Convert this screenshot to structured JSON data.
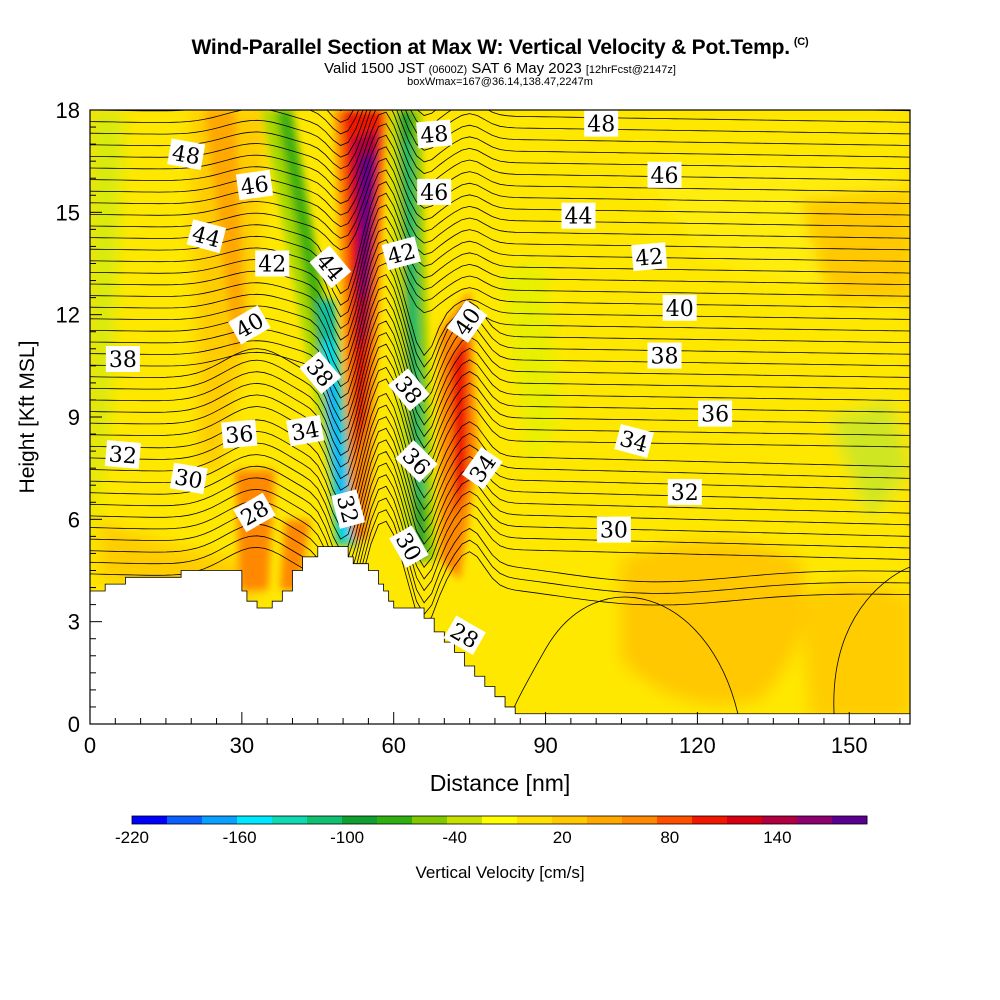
{
  "header": {
    "title": "Wind-Parallel Section at Max W: Vertical Velocity & Pot.Temp.",
    "title_mark": "(C)",
    "subtitle_a": "Valid 1500 JST",
    "subtitle_b": "(0600Z)",
    "subtitle_c": "SAT 6 May 2023",
    "subtitle_d": "[12hrFcst@2147z]",
    "subtitle_line3": "boxWmax=167@36.14,138.47,2247m"
  },
  "colorbar": {
    "title": "Vertical Velocity [cm/s]",
    "tick_labels": [
      "-220",
      "-160",
      "-100",
      "-40",
      "20",
      "80",
      "140"
    ],
    "colors": [
      "#0000ff",
      "#0a60ff",
      "#0aa0ff",
      "#00e8ff",
      "#10d8b0",
      "#10c070",
      "#10a030",
      "#30b010",
      "#80c800",
      "#c8e000",
      "#ffff00",
      "#ffe000",
      "#ffc800",
      "#ffa800",
      "#ff8800",
      "#ff5000",
      "#f01800",
      "#d80010",
      "#b00040",
      "#8c0070",
      "#5a0090"
    ]
  },
  "chart_data": {
    "type": "heatmap",
    "title": "Wind-Parallel Section at Max W: Vertical Velocity & Pot.Temp.",
    "xlabel": "Distance [nm]",
    "ylabel": "Height [Kft MSL]",
    "xlim": [
      0,
      162
    ],
    "ylim": [
      0,
      18
    ],
    "x_ticks": [
      "0",
      "30",
      "60",
      "90",
      "120",
      "150"
    ],
    "y_ticks": [
      "0",
      "3",
      "6",
      "9",
      "12",
      "15",
      "18"
    ],
    "field": "Vertical Velocity [cm/s]",
    "contour_field": "Potential Temperature",
    "w_features": [
      {
        "x": 55,
        "z": 14,
        "w": 167,
        "kind": "updraft core"
      },
      {
        "x": 50,
        "z": 8,
        "w": -180,
        "kind": "downdraft"
      },
      {
        "x": 64,
        "z": 9,
        "w": -70,
        "kind": "downdraft"
      },
      {
        "x": 76,
        "z": 10,
        "w": 80,
        "kind": "updraft"
      },
      {
        "x": 40,
        "z": 6,
        "w": 40,
        "kind": "updraft"
      },
      {
        "x": 30,
        "z": 12,
        "w": 30,
        "kind": "updraft"
      },
      {
        "x": 22,
        "z": 14,
        "w": -20,
        "kind": "downdraft"
      },
      {
        "x": 37,
        "z": 14,
        "w": -50,
        "kind": "downdraft"
      },
      {
        "x": 88,
        "z": 10,
        "w": -20,
        "kind": "downdraft"
      },
      {
        "x": 112,
        "z": 3,
        "w": 25,
        "kind": "updraft"
      },
      {
        "x": 150,
        "z": 8,
        "w": -25,
        "kind": "downdraft"
      }
    ],
    "contour_labels": [
      {
        "text": "48",
        "x": 19,
        "z": 16.7,
        "angle": 10
      },
      {
        "text": "48",
        "x": 68,
        "z": 17.3,
        "angle": -5
      },
      {
        "text": "48",
        "x": 101,
        "z": 17.6,
        "angle": 0
      },
      {
        "text": "46",
        "x": 32.5,
        "z": 15.8,
        "angle": -8
      },
      {
        "text": "46",
        "x": 68,
        "z": 15.6,
        "angle": 0
      },
      {
        "text": "46",
        "x": 113.5,
        "z": 16.1,
        "angle": 0
      },
      {
        "text": "44",
        "x": 23,
        "z": 14.3,
        "angle": 15
      },
      {
        "text": "44",
        "x": 47.5,
        "z": 13.4,
        "angle": 50
      },
      {
        "text": "44",
        "x": 96.5,
        "z": 14.9,
        "angle": 0
      },
      {
        "text": "42",
        "x": 36,
        "z": 13.5,
        "angle": 0
      },
      {
        "text": "42",
        "x": 61.5,
        "z": 13.8,
        "angle": -15
      },
      {
        "text": "42",
        "x": 110.5,
        "z": 13.7,
        "angle": -5
      },
      {
        "text": "40",
        "x": 31.5,
        "z": 11.7,
        "angle": -30
      },
      {
        "text": "40",
        "x": 74.5,
        "z": 11.8,
        "angle": -55
      },
      {
        "text": "40",
        "x": 116.5,
        "z": 12.2,
        "angle": 0
      },
      {
        "text": "38",
        "x": 6.5,
        "z": 10.7,
        "angle": 0
      },
      {
        "text": "38",
        "x": 45.5,
        "z": 10.3,
        "angle": 50
      },
      {
        "text": "38",
        "x": 63,
        "z": 9.8,
        "angle": 50
      },
      {
        "text": "38",
        "x": 113.5,
        "z": 10.8,
        "angle": 0
      },
      {
        "text": "36",
        "x": 29.5,
        "z": 8.5,
        "angle": -5
      },
      {
        "text": "36",
        "x": 64.5,
        "z": 7.7,
        "angle": 45
      },
      {
        "text": "36",
        "x": 123.5,
        "z": 9.1,
        "angle": 0
      },
      {
        "text": "34",
        "x": 42.5,
        "z": 8.6,
        "angle": -10
      },
      {
        "text": "34",
        "x": 77.5,
        "z": 7.5,
        "angle": -55
      },
      {
        "text": "34",
        "x": 107.5,
        "z": 8.3,
        "angle": 15
      },
      {
        "text": "32",
        "x": 6.5,
        "z": 7.9,
        "angle": 5
      },
      {
        "text": "32",
        "x": 51,
        "z": 6.3,
        "angle": 75
      },
      {
        "text": "32",
        "x": 117.5,
        "z": 6.8,
        "angle": 0
      },
      {
        "text": "30",
        "x": 19.5,
        "z": 7.2,
        "angle": 10
      },
      {
        "text": "30",
        "x": 63,
        "z": 5.2,
        "angle": 60
      },
      {
        "text": "30",
        "x": 103.5,
        "z": 5.7,
        "angle": 0
      },
      {
        "text": "28",
        "x": 32.5,
        "z": 6.2,
        "angle": -30
      },
      {
        "text": "28",
        "x": 74,
        "z": 2.6,
        "angle": 30
      }
    ],
    "terrain_top_kft": [
      [
        0,
        3.9
      ],
      [
        3,
        4.1
      ],
      [
        7,
        4.3
      ],
      [
        18,
        4.5
      ],
      [
        29,
        4.5
      ],
      [
        30,
        3.9
      ],
      [
        31,
        3.6
      ],
      [
        32,
        3.6
      ],
      [
        33,
        3.4
      ],
      [
        35,
        3.4
      ],
      [
        36,
        3.6
      ],
      [
        38,
        3.9
      ],
      [
        40,
        4.5
      ],
      [
        42,
        4.9
      ],
      [
        45,
        5.2
      ],
      [
        50,
        5.2
      ],
      [
        51,
        4.9
      ],
      [
        52,
        4.7
      ],
      [
        55,
        4.5
      ],
      [
        57,
        4.1
      ],
      [
        58,
        3.9
      ],
      [
        59,
        3.6
      ],
      [
        60,
        3.4
      ],
      [
        64,
        3.4
      ],
      [
        66,
        3.1
      ],
      [
        68,
        2.7
      ],
      [
        70,
        2.4
      ],
      [
        72,
        2.1
      ],
      [
        74,
        1.7
      ],
      [
        76,
        1.4
      ],
      [
        78,
        1.1
      ],
      [
        80,
        0.8
      ],
      [
        82,
        0.5
      ],
      [
        84,
        0.3
      ],
      [
        86,
        0.3
      ],
      [
        162,
        0.3
      ]
    ]
  }
}
